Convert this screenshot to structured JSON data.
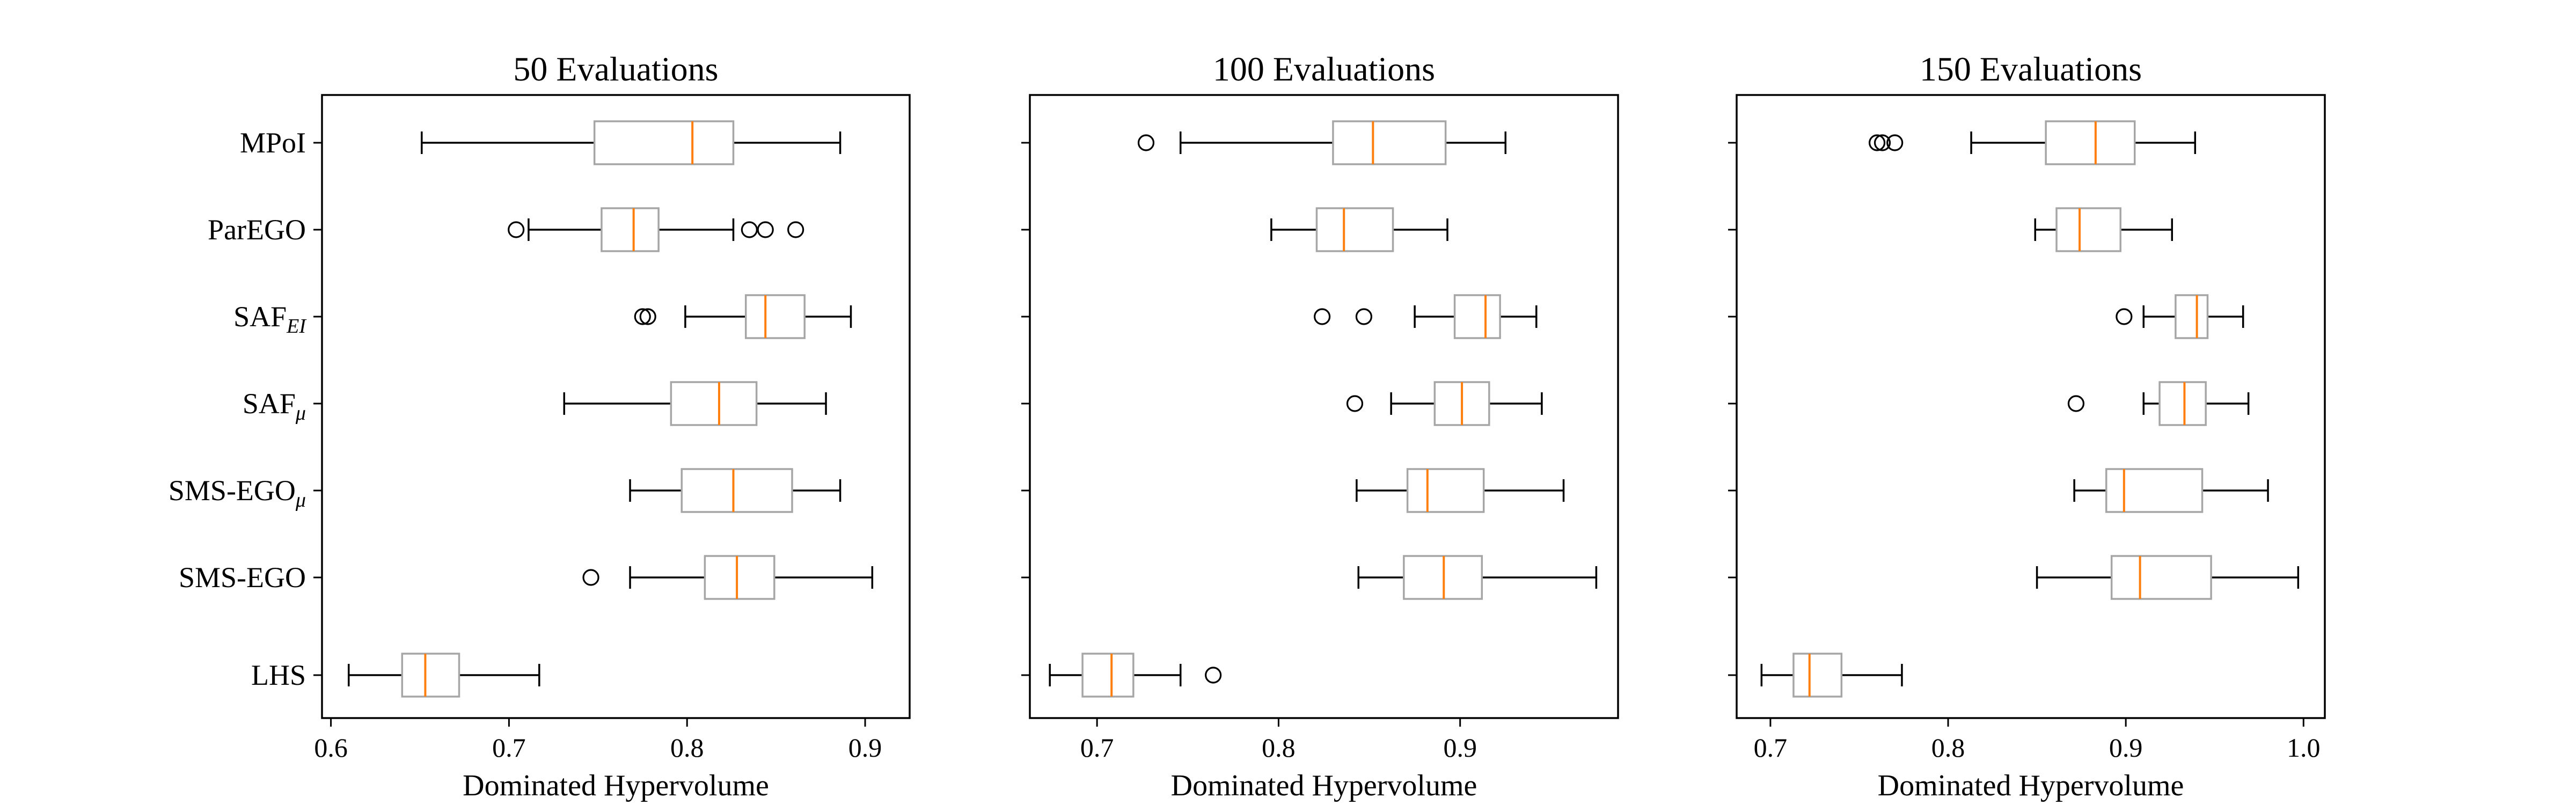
{
  "chart_data": {
    "type": "boxplot",
    "orientation": "horizontal",
    "categories": [
      "MPoI",
      "ParEGO",
      "SAF",
      "SAF",
      "SMS-EGO",
      "SMS-EGO",
      "LHS"
    ],
    "category_subscripts": [
      "",
      "",
      "EI",
      "μ",
      "μ",
      "",
      ""
    ],
    "colors": {
      "box": "#a6a6a6",
      "median": "#ff7f0e",
      "whisker": "#000000"
    },
    "panels": [
      {
        "title": "50 Evaluations",
        "xlabel": "Dominated Hypervolume",
        "xlim": [
          0.595,
          0.925
        ],
        "xticks": [
          0.6,
          0.7,
          0.8,
          0.9
        ],
        "xtick_labels": [
          "0.6",
          "0.7",
          "0.8",
          "0.9"
        ],
        "boxes": [
          {
            "whislo": 0.651,
            "q1": 0.748,
            "med": 0.803,
            "q3": 0.826,
            "whishi": 0.886,
            "fliers": []
          },
          {
            "whislo": 0.711,
            "q1": 0.752,
            "med": 0.77,
            "q3": 0.784,
            "whishi": 0.826,
            "fliers": [
              0.704,
              0.835,
              0.844,
              0.861
            ]
          },
          {
            "whislo": 0.799,
            "q1": 0.833,
            "med": 0.844,
            "q3": 0.866,
            "whishi": 0.892,
            "fliers": [
              0.775,
              0.778
            ]
          },
          {
            "whislo": 0.731,
            "q1": 0.791,
            "med": 0.818,
            "q3": 0.839,
            "whishi": 0.878,
            "fliers": []
          },
          {
            "whislo": 0.768,
            "q1": 0.797,
            "med": 0.826,
            "q3": 0.859,
            "whishi": 0.886,
            "fliers": []
          },
          {
            "whislo": 0.768,
            "q1": 0.81,
            "med": 0.828,
            "q3": 0.849,
            "whishi": 0.904,
            "fliers": [
              0.746
            ]
          },
          {
            "whislo": 0.61,
            "q1": 0.64,
            "med": 0.653,
            "q3": 0.672,
            "whishi": 0.717,
            "fliers": []
          }
        ]
      },
      {
        "title": "100 Evaluations",
        "xlabel": "Dominated Hypervolume",
        "xlim": [
          0.663,
          0.987
        ],
        "xticks": [
          0.7,
          0.8,
          0.9
        ],
        "xtick_labels": [
          "0.7",
          "0.8",
          "0.9"
        ],
        "boxes": [
          {
            "whislo": 0.746,
            "q1": 0.83,
            "med": 0.852,
            "q3": 0.892,
            "whishi": 0.925,
            "fliers": [
              0.727
            ]
          },
          {
            "whislo": 0.796,
            "q1": 0.821,
            "med": 0.836,
            "q3": 0.863,
            "whishi": 0.893,
            "fliers": []
          },
          {
            "whislo": 0.875,
            "q1": 0.897,
            "med": 0.914,
            "q3": 0.922,
            "whishi": 0.942,
            "fliers": [
              0.824,
              0.847
            ]
          },
          {
            "whislo": 0.862,
            "q1": 0.886,
            "med": 0.901,
            "q3": 0.916,
            "whishi": 0.945,
            "fliers": [
              0.842
            ]
          },
          {
            "whislo": 0.843,
            "q1": 0.871,
            "med": 0.882,
            "q3": 0.913,
            "whishi": 0.957,
            "fliers": []
          },
          {
            "whislo": 0.844,
            "q1": 0.869,
            "med": 0.891,
            "q3": 0.912,
            "whishi": 0.975,
            "fliers": []
          },
          {
            "whislo": 0.674,
            "q1": 0.692,
            "med": 0.708,
            "q3": 0.72,
            "whishi": 0.746,
            "fliers": [
              0.764
            ]
          }
        ]
      },
      {
        "title": "150 Evaluations",
        "xlabel": "Dominated Hypervolume",
        "xlim": [
          0.681,
          1.012
        ],
        "xticks": [
          0.7,
          0.8,
          0.9,
          1.0
        ],
        "xtick_labels": [
          "0.7",
          "0.8",
          "0.9",
          "1.0"
        ],
        "boxes": [
          {
            "whislo": 0.813,
            "q1": 0.855,
            "med": 0.883,
            "q3": 0.905,
            "whishi": 0.939,
            "fliers": [
              0.76,
              0.763,
              0.77
            ]
          },
          {
            "whislo": 0.849,
            "q1": 0.861,
            "med": 0.874,
            "q3": 0.897,
            "whishi": 0.926,
            "fliers": []
          },
          {
            "whislo": 0.91,
            "q1": 0.928,
            "med": 0.94,
            "q3": 0.946,
            "whishi": 0.966,
            "fliers": [
              0.899
            ]
          },
          {
            "whislo": 0.91,
            "q1": 0.919,
            "med": 0.933,
            "q3": 0.945,
            "whishi": 0.969,
            "fliers": [
              0.872
            ]
          },
          {
            "whislo": 0.871,
            "q1": 0.889,
            "med": 0.899,
            "q3": 0.943,
            "whishi": 0.98,
            "fliers": []
          },
          {
            "whislo": 0.85,
            "q1": 0.892,
            "med": 0.908,
            "q3": 0.948,
            "whishi": 0.997,
            "fliers": []
          },
          {
            "whislo": 0.695,
            "q1": 0.713,
            "med": 0.722,
            "q3": 0.74,
            "whishi": 0.774,
            "fliers": []
          }
        ]
      }
    ]
  }
}
